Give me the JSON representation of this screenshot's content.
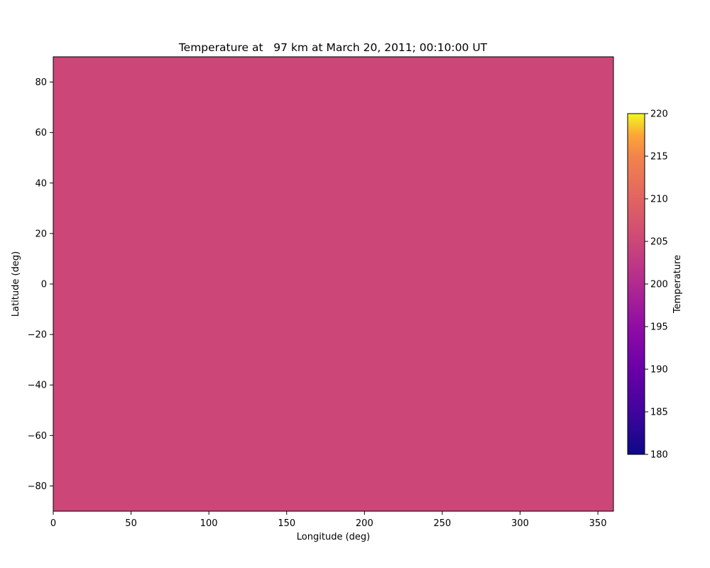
{
  "chart_data": {
    "type": "heatmap",
    "title": "Temperature at   97 km at March 20, 2011; 00:10:00 UT",
    "xlabel": "Longitude (deg)",
    "ylabel": "Latitude (deg)",
    "xlim": [
      0,
      360
    ],
    "ylim": [
      -90,
      90
    ],
    "x_ticks": [
      0,
      50,
      100,
      150,
      200,
      250,
      300,
      350
    ],
    "y_ticks": [
      -80,
      -60,
      -40,
      -20,
      0,
      20,
      40,
      60,
      80
    ],
    "grid": false,
    "field": {
      "x_range": [
        0,
        360
      ],
      "y_range": [
        -90,
        90
      ],
      "value": 199.5,
      "color": "#cc4778"
    },
    "colorbar": {
      "label": "Temperature",
      "range": [
        180,
        220
      ],
      "ticks": [
        180,
        185,
        190,
        195,
        200,
        205,
        210,
        215,
        220
      ],
      "colormap": "plasma",
      "placement": "right"
    }
  }
}
